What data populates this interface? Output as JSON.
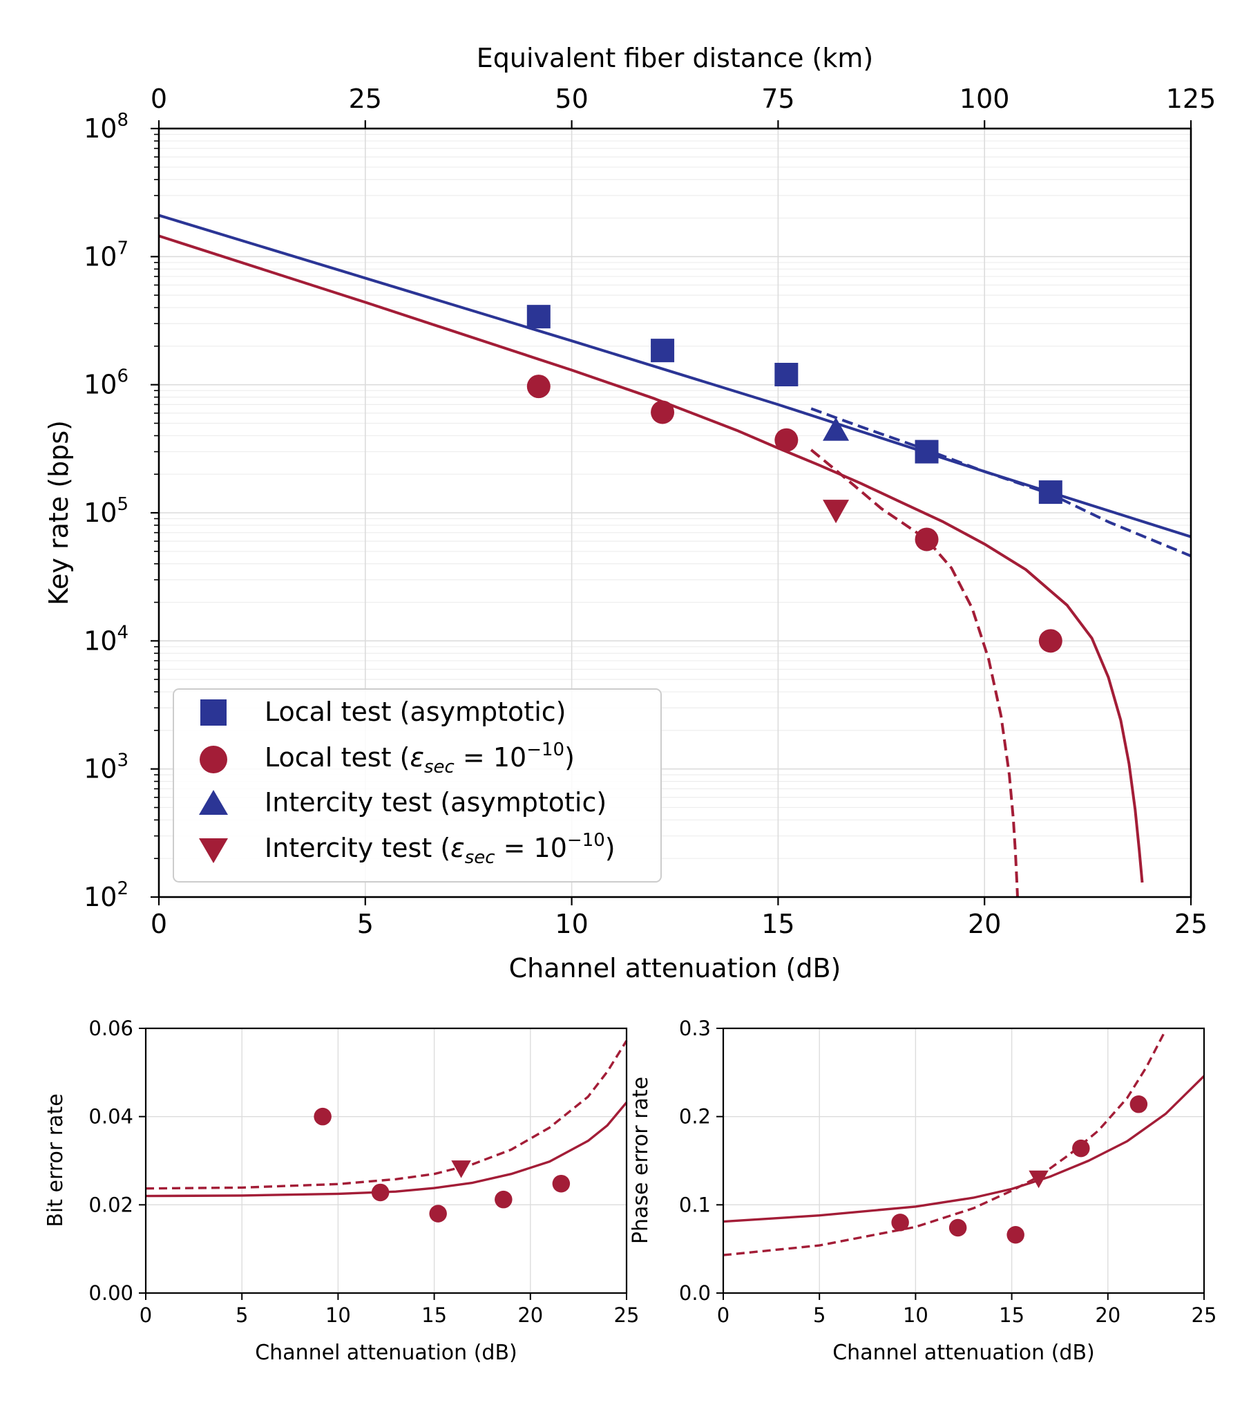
{
  "colors": {
    "blue": "#2b3595",
    "red": "#a31d37",
    "grid": "#dcdcdc",
    "minor_grid": "#ededed"
  },
  "chart_data": [
    {
      "id": "main",
      "type": "scatter",
      "title": "",
      "xlabel": "Channel attenuation (dB)",
      "ylabel": "Key rate (bps)",
      "x_top_label": "Equivalent fiber distance (km)",
      "xlim": [
        0,
        25
      ],
      "ylim": [
        100,
        100000000
      ],
      "yscale": "log",
      "xticks": [
        0,
        5,
        10,
        15,
        20,
        25
      ],
      "xticklabels": [
        "0",
        "5",
        "10",
        "15",
        "20",
        "25"
      ],
      "top_xlim": [
        0,
        125
      ],
      "top_ticks": [
        0,
        25,
        50,
        75,
        100,
        125
      ],
      "top_ticklabels": [
        "0",
        "25",
        "50",
        "75",
        "100",
        "125"
      ],
      "yticks_exp": [
        "2",
        "3",
        "4",
        "5",
        "6",
        "7",
        "8"
      ],
      "yticks_base": "10",
      "grid": true,
      "legend_position": "bottom-left",
      "legend": [
        {
          "label": "Local test (asymptotic)",
          "marker": "square",
          "color": "#2b3595"
        },
        {
          "label_pre": "Local test (",
          "label_eps": "ε",
          "label_sub": "sec",
          "label_mid": " = 10",
          "label_sup": "−10",
          "label_post": ")",
          "marker": "circle",
          "color": "#a31d37"
        },
        {
          "label": "Intercity test (asymptotic)",
          "marker": "triangle-up",
          "color": "#2b3595"
        },
        {
          "label_pre": "Intercity test (",
          "label_eps": "ε",
          "label_sub": "sec",
          "label_mid": " = 10",
          "label_sup": "−10",
          "label_post": ")",
          "marker": "triangle-down",
          "color": "#a31d37"
        }
      ],
      "series": [
        {
          "name": "Local test (asymptotic)",
          "kind": "points",
          "marker": "square",
          "color": "#2b3595",
          "x": [
            9.2,
            12.2,
            15.2,
            18.6,
            21.6
          ],
          "y": [
            3400000,
            1850000,
            1200000,
            300000,
            145000
          ]
        },
        {
          "name": "Local test (eps_sec = 10^-10)",
          "kind": "points",
          "marker": "circle",
          "color": "#a31d37",
          "x": [
            9.2,
            12.2,
            15.2,
            18.6,
            21.6
          ],
          "y": [
            970000,
            610000,
            370000,
            62000,
            10000
          ]
        },
        {
          "name": "Intercity test (asymptotic)",
          "kind": "points",
          "marker": "triangle-up",
          "color": "#2b3595",
          "x": [
            16.4
          ],
          "y": [
            440000
          ]
        },
        {
          "name": "Intercity test (eps_sec = 10^-10)",
          "kind": "points",
          "marker": "triangle-down",
          "color": "#a31d37",
          "x": [
            16.4
          ],
          "y": [
            105000
          ]
        },
        {
          "name": "Local asymptotic fit",
          "kind": "line",
          "style": "solid",
          "color": "#2b3595",
          "x": [
            0,
            5,
            10,
            15,
            20,
            25
          ],
          "y": [
            21000000,
            6800000,
            2200000,
            700000,
            210000,
            65000
          ]
        },
        {
          "name": "Intercity asymptotic fit",
          "kind": "line",
          "style": "dashed",
          "color": "#2b3595",
          "x": [
            15.8,
            17,
            18.6,
            20,
            21.6,
            23,
            25
          ],
          "y": [
            650000,
            470000,
            310000,
            210000,
            140000,
            85000,
            46000
          ]
        },
        {
          "name": "Local finite-size fit",
          "kind": "line",
          "style": "solid",
          "color": "#a31d37",
          "x": [
            0,
            5,
            10,
            12,
            14,
            15,
            16,
            17,
            18,
            19,
            20,
            21,
            22,
            22.6,
            23.0,
            23.3,
            23.5,
            23.65,
            23.75,
            23.82
          ],
          "y": [
            14500000,
            4400000,
            1300000,
            780000,
            440000,
            320000,
            235000,
            170000,
            120000,
            85000,
            57000,
            36000,
            19000,
            10500,
            5200,
            2400,
            1100,
            480,
            230,
            130
          ]
        },
        {
          "name": "Intercity finite-size fit",
          "kind": "line",
          "style": "dashed",
          "color": "#a31d37",
          "x": [
            15.8,
            16.4,
            17,
            17.5,
            18,
            18.6,
            19.2,
            19.7,
            20.1,
            20.4,
            20.6,
            20.7,
            20.75,
            20.78,
            20.8
          ],
          "y": [
            310000,
            215000,
            148000,
            108000,
            84000,
            62000,
            37000,
            18000,
            7200,
            2600,
            900,
            400,
            220,
            140,
            100
          ]
        }
      ]
    },
    {
      "id": "ber",
      "type": "scatter",
      "title": "",
      "xlabel": "Channel attenuation (dB)",
      "ylabel": "Bit error rate",
      "xlim": [
        0,
        25
      ],
      "ylim": [
        0,
        0.06
      ],
      "xticks": [
        0,
        5,
        10,
        15,
        20,
        25
      ],
      "xticklabels": [
        "0",
        "5",
        "10",
        "15",
        "20",
        "25"
      ],
      "yticks": [
        0,
        0.02,
        0.04,
        0.06
      ],
      "yticklabels": [
        "0.00",
        "0.02",
        "0.04",
        "0.06"
      ],
      "grid": true,
      "series": [
        {
          "name": "Local test",
          "kind": "points",
          "marker": "circle",
          "color": "#a31d37",
          "x": [
            9.2,
            12.2,
            15.2,
            18.6,
            21.6
          ],
          "y": [
            0.04,
            0.0228,
            0.018,
            0.0212,
            0.0248
          ]
        },
        {
          "name": "Intercity test",
          "kind": "points",
          "marker": "triangle-down",
          "color": "#a31d37",
          "x": [
            16.4
          ],
          "y": [
            0.0283
          ]
        },
        {
          "name": "Local fit",
          "kind": "line",
          "style": "solid",
          "color": "#a31d37",
          "x": [
            0,
            5,
            10,
            13,
            15,
            17,
            19,
            21,
            23,
            24,
            25
          ],
          "y": [
            0.022,
            0.0221,
            0.0225,
            0.023,
            0.0238,
            0.025,
            0.027,
            0.0298,
            0.0345,
            0.038,
            0.0432
          ]
        },
        {
          "name": "Intercity fit",
          "kind": "line",
          "style": "dashed",
          "color": "#a31d37",
          "x": [
            0,
            5,
            10,
            13,
            15,
            17,
            19,
            21,
            23,
            24,
            25
          ],
          "y": [
            0.0237,
            0.0239,
            0.0247,
            0.0258,
            0.027,
            0.0292,
            0.0325,
            0.0375,
            0.0445,
            0.0502,
            0.0572
          ]
        }
      ]
    },
    {
      "id": "per",
      "type": "scatter",
      "title": "",
      "xlabel": "Channel attenuation (dB)",
      "ylabel": "Phase error rate",
      "xlim": [
        0,
        25
      ],
      "ylim": [
        0,
        0.3
      ],
      "xticks": [
        0,
        5,
        10,
        15,
        20,
        25
      ],
      "xticklabels": [
        "0",
        "5",
        "10",
        "15",
        "20",
        "25"
      ],
      "yticks": [
        0,
        0.1,
        0.2,
        0.3
      ],
      "yticklabels": [
        "0.0",
        "0.1",
        "0.2",
        "0.3"
      ],
      "grid": true,
      "series": [
        {
          "name": "Local test",
          "kind": "points",
          "marker": "circle",
          "color": "#a31d37",
          "x": [
            9.2,
            12.2,
            15.2,
            18.6,
            21.6
          ],
          "y": [
            0.08,
            0.074,
            0.066,
            0.164,
            0.214
          ]
        },
        {
          "name": "Intercity test",
          "kind": "points",
          "marker": "triangle-down",
          "color": "#a31d37",
          "x": [
            16.4
          ],
          "y": [
            0.13
          ]
        },
        {
          "name": "Local fit",
          "kind": "line",
          "style": "solid",
          "color": "#a31d37",
          "x": [
            0,
            5,
            10,
            13,
            15,
            17,
            19,
            21,
            23,
            25
          ],
          "y": [
            0.081,
            0.088,
            0.098,
            0.108,
            0.118,
            0.132,
            0.15,
            0.172,
            0.203,
            0.246
          ]
        },
        {
          "name": "Intercity fit",
          "kind": "line",
          "style": "dashed",
          "color": "#a31d37",
          "x": [
            0,
            5,
            10,
            13,
            15,
            16.4,
            18,
            19.5,
            21,
            22,
            23
          ],
          "y": [
            0.043,
            0.054,
            0.075,
            0.096,
            0.116,
            0.132,
            0.157,
            0.184,
            0.221,
            0.256,
            0.298
          ]
        }
      ]
    }
  ]
}
